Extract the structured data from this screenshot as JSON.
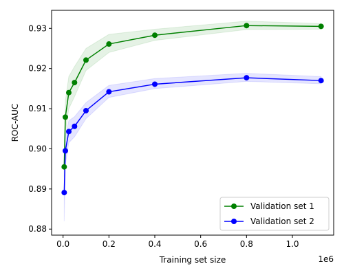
{
  "chart_data": {
    "type": "line",
    "title": "",
    "xlabel": "Training set size",
    "ylabel": "ROC-AUC",
    "x_offset_label": "1e6",
    "xlim": [
      -50000,
      1180000
    ],
    "ylim": [
      0.8785,
      0.9345
    ],
    "x_ticks": [
      0,
      200000,
      400000,
      600000,
      800000,
      1000000
    ],
    "x_tick_labels": [
      "0.0",
      "0.2",
      "0.4",
      "0.6",
      "0.8",
      "1.0"
    ],
    "y_ticks": [
      0.88,
      0.89,
      0.9,
      0.91,
      0.92,
      0.93
    ],
    "y_tick_labels": [
      "0.88",
      "0.89",
      "0.90",
      "0.91",
      "0.92",
      "0.93"
    ],
    "grid": false,
    "legend_position": "bottom-right",
    "x": [
      5000,
      10000,
      25000,
      50000,
      100000,
      200000,
      400000,
      800000,
      1125000
    ],
    "series": [
      {
        "name": "Validation set 1",
        "color": "#008000",
        "band_color": "#008000",
        "values": [
          0.8955,
          0.9079,
          0.914,
          0.9165,
          0.9221,
          0.9261,
          0.9283,
          0.9307,
          0.9305
        ],
        "band_lower": [
          0.893,
          0.904,
          0.91,
          0.913,
          0.9195,
          0.924,
          0.927,
          0.9297,
          0.9298
        ],
        "band_upper": [
          0.899,
          0.912,
          0.918,
          0.9205,
          0.925,
          0.9285,
          0.9298,
          0.9318,
          0.9312
        ]
      },
      {
        "name": "Validation set 2",
        "color": "#0000ff",
        "band_color": "#0000ff",
        "values": [
          0.8891,
          0.8995,
          0.9043,
          0.9056,
          0.9095,
          0.9142,
          0.9161,
          0.9177,
          0.917
        ],
        "band_lower": [
          0.882,
          0.896,
          0.9015,
          0.903,
          0.9075,
          0.9128,
          0.915,
          0.9168,
          0.9162
        ],
        "band_upper": [
          0.8965,
          0.903,
          0.907,
          0.908,
          0.9115,
          0.9158,
          0.9175,
          0.9188,
          0.918
        ]
      }
    ]
  }
}
